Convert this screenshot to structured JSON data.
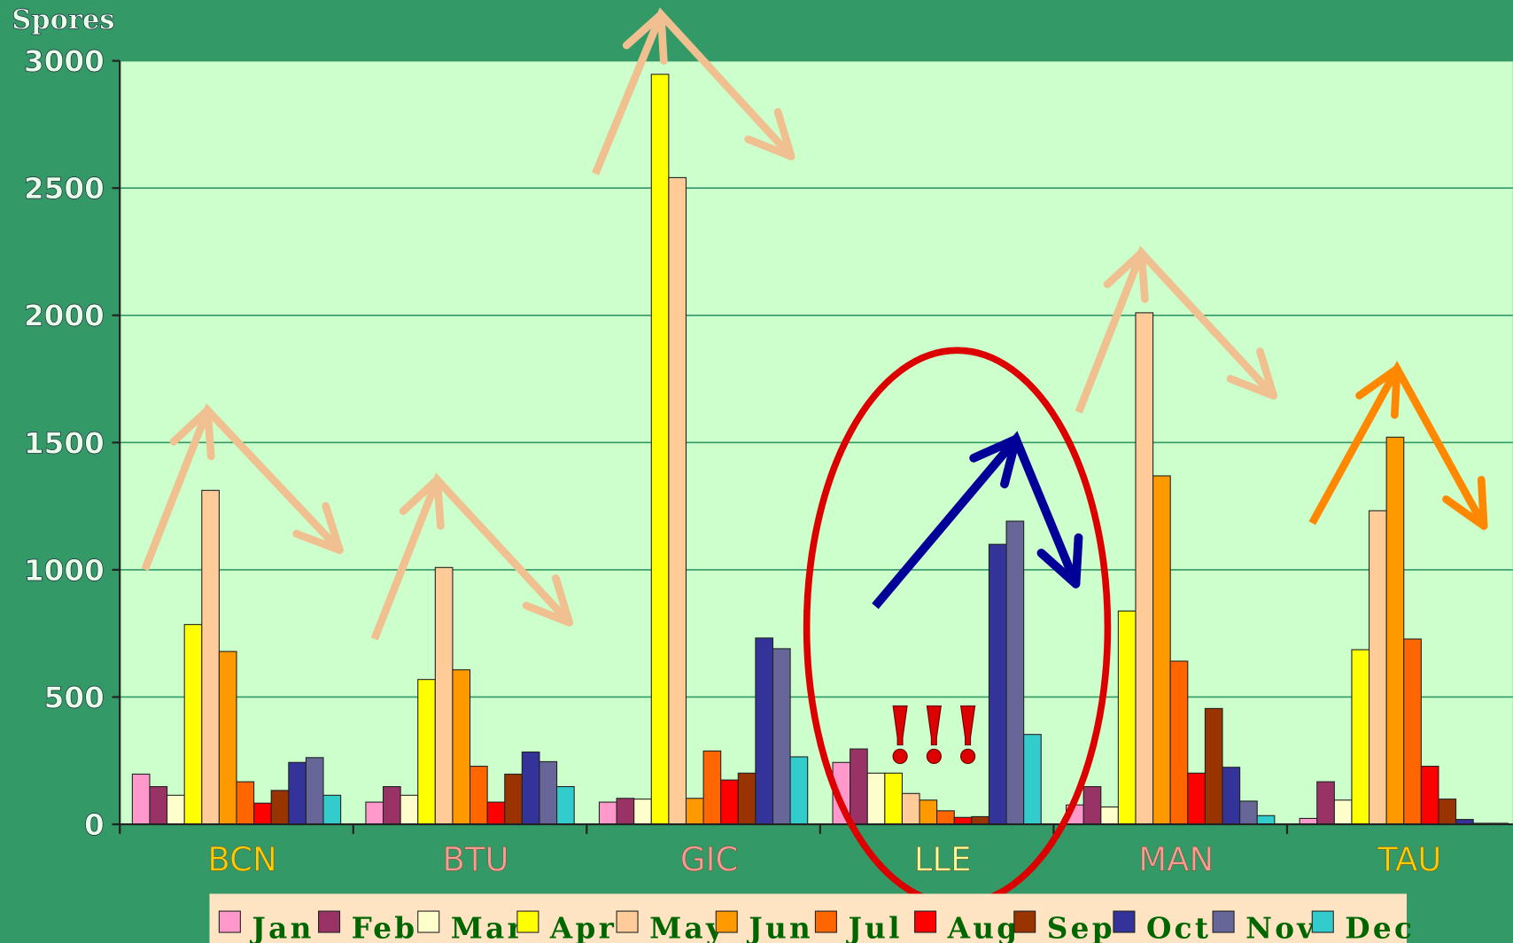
{
  "chart_data": {
    "type": "bar",
    "ylabel": "Spores",
    "categories": [
      "BCN",
      "BTU",
      "GIC",
      "LLE",
      "MAN",
      "TAU"
    ],
    "category_label_colors": [
      "#ffcc00",
      "#ff9999",
      "#ff9999",
      "#ffff99",
      "#ff9999",
      "#ffcc00"
    ],
    "series": [
      {
        "name": "Jan",
        "color": "#ff99cc",
        "values": [
          197,
          87,
          87,
          243,
          76,
          23
        ]
      },
      {
        "name": "Feb",
        "color": "#993366",
        "values": [
          148,
          148,
          102,
          296,
          148,
          167
        ]
      },
      {
        "name": "Mar",
        "color": "#ffffcc",
        "values": [
          114,
          114,
          99,
          201,
          68,
          95
        ]
      },
      {
        "name": "Apr",
        "color": "#ffff00",
        "values": [
          785,
          569,
          2947,
          201,
          838,
          686
        ]
      },
      {
        "name": "May",
        "color": "#ffcc99",
        "values": [
          1312,
          1009,
          2541,
          121,
          2010,
          1232
        ]
      },
      {
        "name": "Jun",
        "color": "#ff9900",
        "values": [
          679,
          607,
          102,
          95,
          1369,
          1521
        ]
      },
      {
        "name": "Jul",
        "color": "#ff6600",
        "values": [
          167,
          228,
          288,
          53,
          641,
          728
        ]
      },
      {
        "name": "Aug",
        "color": "#ff0000",
        "values": [
          83,
          87,
          174,
          27,
          201,
          228
        ]
      },
      {
        "name": "Sep",
        "color": "#993300",
        "values": [
          133,
          197,
          201,
          30,
          455,
          99
        ]
      },
      {
        "name": "Oct",
        "color": "#333399",
        "values": [
          243,
          284,
          732,
          1100,
          224,
          19
        ]
      },
      {
        "name": "Nov",
        "color": "#666699",
        "values": [
          262,
          246,
          690,
          1191,
          91,
          4
        ]
      },
      {
        "name": "Dec",
        "color": "#33cccc",
        "values": [
          114,
          148,
          265,
          353,
          34,
          4
        ]
      }
    ],
    "ylim": [
      0,
      3000
    ],
    "yticks": [
      0,
      500,
      1000,
      1500,
      2000,
      2500,
      3000
    ],
    "grid": true,
    "legend": "bottom",
    "annotations": [
      "!!!"
    ]
  }
}
